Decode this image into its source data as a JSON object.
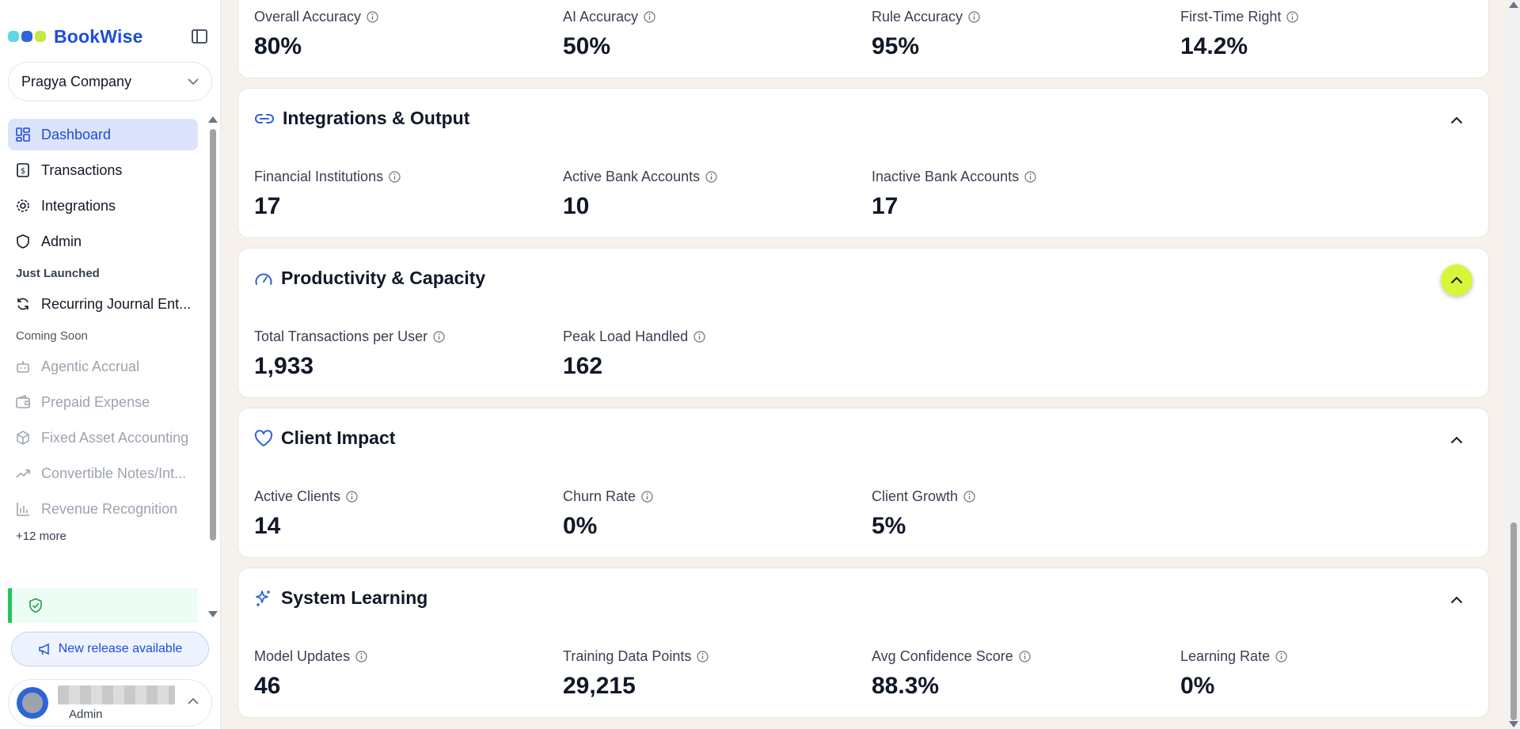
{
  "app": {
    "brand": "BookWise",
    "brand_colors": [
      "#5fd6e6",
      "#2f64d6",
      "#c7e83c"
    ]
  },
  "company": {
    "name": "Pragya Company"
  },
  "nav": {
    "items": [
      {
        "label": "Dashboard",
        "icon": "dashboard-icon",
        "active": true
      },
      {
        "label": "Transactions",
        "icon": "receipt-icon"
      },
      {
        "label": "Integrations",
        "icon": "gear-icon"
      },
      {
        "label": "Admin",
        "icon": "shield-icon"
      }
    ],
    "just_launched_title": "Just Launched",
    "just_launched": [
      {
        "label": "Recurring Journal Ent...",
        "icon": "refresh-icon"
      }
    ],
    "coming_soon_title": "Coming Soon",
    "coming_soon": [
      {
        "label": "Agentic Accrual",
        "icon": "bot-icon"
      },
      {
        "label": "Prepaid Expense",
        "icon": "wallet-icon"
      },
      {
        "label": "Fixed Asset Accounting",
        "icon": "box-icon"
      },
      {
        "label": "Convertible Notes/Int...",
        "icon": "trending-up-icon"
      },
      {
        "label": "Revenue Recognition",
        "icon": "bar-chart-icon"
      }
    ],
    "more_label": "+12 more"
  },
  "release": {
    "label": "New release available"
  },
  "user": {
    "role": "Admin"
  },
  "cards": {
    "accuracy": {
      "metrics": [
        {
          "label": "Overall Accuracy",
          "value": "80%"
        },
        {
          "label": "AI Accuracy",
          "value": "50%"
        },
        {
          "label": "Rule Accuracy",
          "value": "95%"
        },
        {
          "label": "First-Time Right",
          "value": "14.2%"
        }
      ]
    },
    "integrations": {
      "title": "Integrations & Output",
      "metrics": [
        {
          "label": "Financial Institutions",
          "value": "17"
        },
        {
          "label": "Active Bank Accounts",
          "value": "10"
        },
        {
          "label": "Inactive Bank Accounts",
          "value": "17"
        }
      ]
    },
    "productivity": {
      "title": "Productivity & Capacity",
      "metrics": [
        {
          "label": "Total Transactions per User",
          "value": "1,933"
        },
        {
          "label": "Peak Load Handled",
          "value": "162"
        }
      ]
    },
    "client": {
      "title": "Client Impact",
      "metrics": [
        {
          "label": "Active Clients",
          "value": "14"
        },
        {
          "label": "Churn Rate",
          "value": "0%"
        },
        {
          "label": "Client Growth",
          "value": "5%"
        }
      ]
    },
    "learning": {
      "title": "System Learning",
      "metrics": [
        {
          "label": "Model Updates",
          "value": "46"
        },
        {
          "label": "Training Data Points",
          "value": "29,215"
        },
        {
          "label": "Avg Confidence Score",
          "value": "88.3%"
        },
        {
          "label": "Learning Rate",
          "value": "0%"
        }
      ]
    }
  }
}
